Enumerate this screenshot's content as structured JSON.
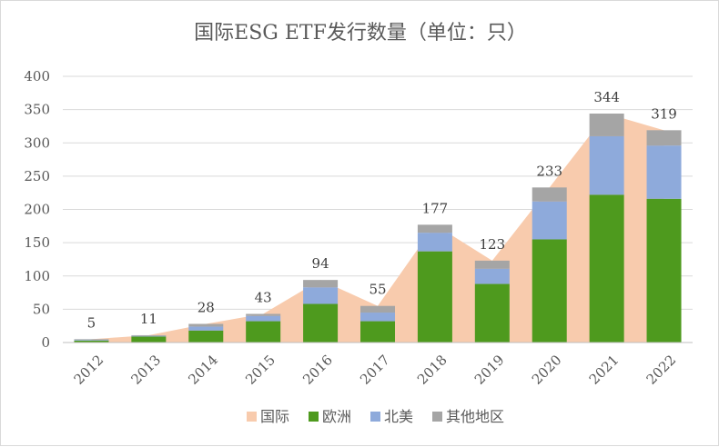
{
  "chart_data": {
    "type": "bar",
    "title": "国际ESG ETF发行数量（单位：只）",
    "categories": [
      "2012",
      "2013",
      "2014",
      "2015",
      "2016",
      "2017",
      "2018",
      "2019",
      "2020",
      "2021",
      "2022"
    ],
    "ylim": [
      0,
      400
    ],
    "yticks": [
      0,
      50,
      100,
      150,
      200,
      250,
      300,
      350,
      400
    ],
    "grid": true,
    "legend_position": "bottom",
    "area_series": {
      "name": "国际",
      "values": [
        5,
        11,
        28,
        43,
        94,
        55,
        177,
        123,
        233,
        344,
        319
      ],
      "color": "#f8cbad"
    },
    "stacked_series": [
      {
        "name": "欧洲",
        "values": [
          3,
          9,
          18,
          32,
          58,
          32,
          137,
          88,
          155,
          222,
          216
        ],
        "color": "#4e9a1e"
      },
      {
        "name": "北美",
        "values": [
          1,
          1,
          6,
          8,
          25,
          13,
          28,
          23,
          57,
          88,
          80
        ],
        "color": "#8eaadb"
      },
      {
        "name": "其他地区",
        "values": [
          1,
          1,
          4,
          3,
          11,
          10,
          12,
          12,
          21,
          34,
          23
        ],
        "color": "#a5a5a5"
      }
    ],
    "data_labels": [
      "5",
      "11",
      "28",
      "43",
      "94",
      "55",
      "177",
      "123",
      "233",
      "344",
      "319"
    ]
  }
}
